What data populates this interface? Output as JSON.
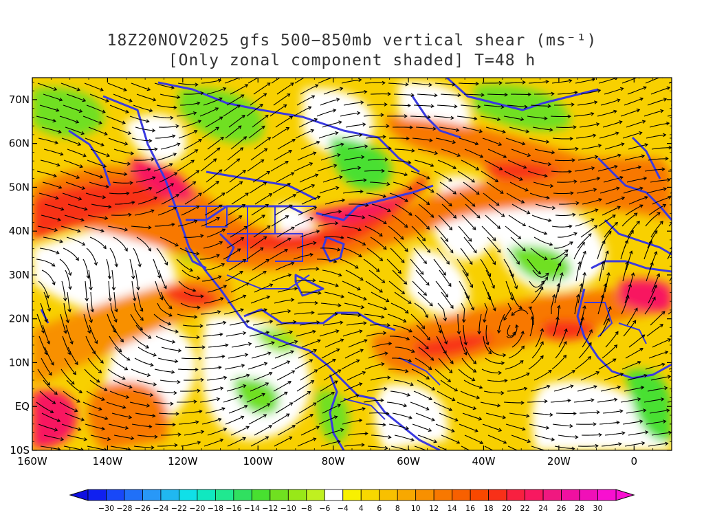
{
  "title": {
    "line1": "18Z20NOV2025 gfs 500−850mb vertical shear (ms⁻¹)",
    "line2": "[Only zonal component shaded] T=48 h"
  },
  "map": {
    "lat_axis": [
      "70N",
      "60N",
      "50N",
      "40N",
      "30N",
      "20N",
      "10N",
      "EQ",
      "10S"
    ],
    "lon_axis": [
      "160W",
      "140W",
      "120W",
      "100W",
      "80W",
      "60W",
      "40W",
      "20W",
      "0"
    ],
    "lat_range": [
      -10,
      75
    ],
    "lon_range": [
      -160,
      10
    ],
    "coastline_color": "#3a3ae0",
    "streamline_color": "#000000"
  },
  "colorbar": {
    "labels": [
      "−30",
      "−28",
      "−26",
      "−24",
      "−22",
      "−20",
      "−18",
      "−16",
      "−14",
      "−12",
      "−10",
      "−8",
      "−6",
      "−4",
      "4",
      "6",
      "8",
      "10",
      "12",
      "14",
      "16",
      "18",
      "20",
      "22",
      "24",
      "26",
      "28",
      "30"
    ],
    "colors": [
      "#1020f0",
      "#1848f8",
      "#2070f8",
      "#2898f8",
      "#20b8f0",
      "#10e0e8",
      "#10e8c0",
      "#20e890",
      "#30e060",
      "#48e030",
      "#70e020",
      "#98e818",
      "#c0f020",
      "#ffffff",
      "#f8f000",
      "#f8d800",
      "#f8c000",
      "#f8a800",
      "#f89000",
      "#f87800",
      "#f86000",
      "#f84800",
      "#f83018",
      "#f82040",
      "#f81860",
      "#f01880",
      "#f010a0",
      "#f010b8",
      "#f810d0"
    ],
    "under_color": "#1010e0",
    "over_color": "#f810d0"
  }
}
